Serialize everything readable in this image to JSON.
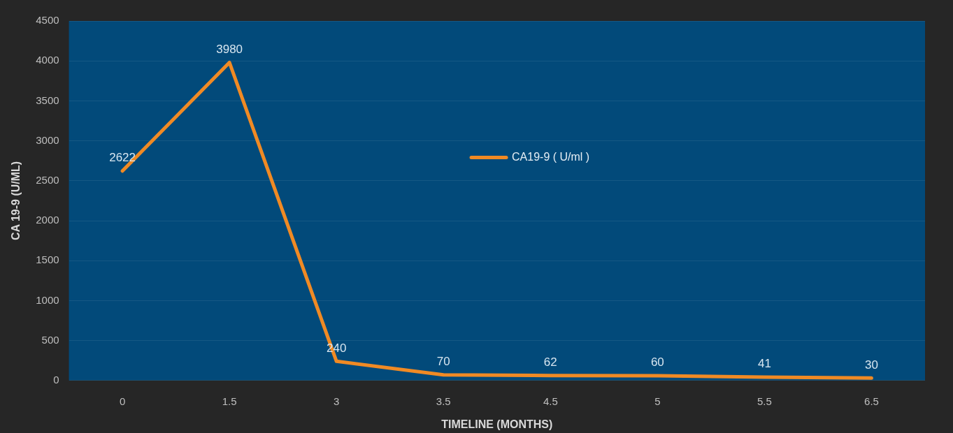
{
  "chart_data": {
    "type": "line",
    "xlabel": "TIMELINE (MONTHS)",
    "ylabel": "CA 19-9 (U/ML)",
    "categories": [
      "0",
      "1.5",
      "3",
      "3.5",
      "4.5",
      "5",
      "5.5",
      "6.5"
    ],
    "series": [
      {
        "name": "CA19-9 ( U/ml )",
        "color": "#f08a24",
        "values": [
          2622,
          3980,
          240,
          70,
          62,
          60,
          41,
          30
        ]
      }
    ],
    "ylim": [
      0,
      4500
    ],
    "yticks": [
      0,
      500,
      1000,
      1500,
      2000,
      2500,
      3000,
      3500,
      4000,
      4500
    ],
    "grid": "y",
    "legend": "top",
    "marker": "none",
    "line_style": "solid",
    "data_labels": true
  }
}
